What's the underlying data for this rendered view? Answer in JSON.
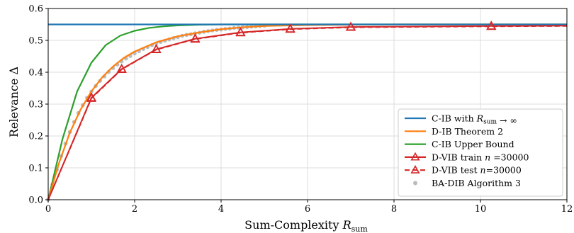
{
  "chart_data": {
    "type": "line",
    "xlabel_main": "Sum-Complexity ",
    "xlabel_symbol": "R",
    "xlabel_sub": "sum",
    "ylabel_main": "Relevance ",
    "ylabel_symbol": "Δ",
    "xlim": [
      0,
      12
    ],
    "ylim": [
      0,
      0.6
    ],
    "xticks": [
      "0",
      "2",
      "4",
      "6",
      "8",
      "10",
      "12"
    ],
    "yticks": [
      "0.0",
      "0.1",
      "0.2",
      "0.3",
      "0.4",
      "0.5",
      "0.6"
    ],
    "grid": true,
    "legend_position": "lower-right",
    "series": [
      {
        "name": "C-IB with R_sum → ∞",
        "legend_main": "C-IB with ",
        "legend_symbol": "R",
        "legend_sub": "sum",
        "legend_tail": " → ∞",
        "color": "#1f77b4",
        "style": "solid",
        "x": [
          0,
          12
        ],
        "y": [
          0.55,
          0.55
        ]
      },
      {
        "name": "D-IB Theorem 2",
        "legend_main": "D-IB Theorem 2",
        "color": "#ff7f0e",
        "style": "solid",
        "x": [
          0,
          0.25,
          0.5,
          0.75,
          1.0,
          1.25,
          1.5,
          1.75,
          2.0,
          2.5,
          3.0,
          3.5,
          4.0,
          4.5,
          5.0,
          6.0,
          7.0,
          8.0,
          10.0,
          12.0
        ],
        "y": [
          0,
          0.115,
          0.21,
          0.283,
          0.34,
          0.384,
          0.418,
          0.445,
          0.465,
          0.494,
          0.513,
          0.525,
          0.535,
          0.541,
          0.545,
          0.548,
          0.549,
          0.55,
          0.55,
          0.55
        ]
      },
      {
        "name": "C-IB Upper Bound",
        "legend_main": "C-IB Upper Bound",
        "color": "#2ca02c",
        "style": "solid",
        "x": [
          0,
          0.33,
          0.67,
          1.0,
          1.33,
          1.67,
          2.0,
          2.33,
          2.67,
          3.0,
          3.5,
          4.0,
          5.0,
          6.0,
          8.0,
          12.0
        ],
        "y": [
          0,
          0.19,
          0.34,
          0.43,
          0.485,
          0.515,
          0.53,
          0.539,
          0.544,
          0.547,
          0.549,
          0.55,
          0.55,
          0.55,
          0.55,
          0.55
        ]
      },
      {
        "name": "D-VIB train n =30000",
        "legend_main": "D-VIB train ",
        "legend_symbol": "n",
        "legend_tail": " =30000",
        "color": "#d62728",
        "style": "solid",
        "marker": "triangle",
        "x": [
          0,
          1.0,
          1.7,
          2.5,
          3.4,
          4.45,
          5.6,
          7.0,
          10.25,
          12.0
        ],
        "y": [
          0,
          0.32,
          0.41,
          0.472,
          0.505,
          0.525,
          0.536,
          0.542,
          0.545,
          0.546
        ]
      },
      {
        "name": "D-VIB test n=30000",
        "legend_main": "D-VIB test ",
        "legend_symbol": "n",
        "legend_tail": "=30000",
        "color": "#d62728",
        "style": "dashed",
        "marker": "triangle",
        "x": [
          0,
          1.0,
          1.7,
          2.5,
          3.4,
          4.45,
          5.6,
          7.0,
          10.25,
          12.0
        ],
        "y": [
          0,
          0.318,
          0.409,
          0.471,
          0.504,
          0.524,
          0.535,
          0.541,
          0.544,
          0.545
        ]
      },
      {
        "name": "BA-DIB Algorithm 3",
        "legend_main": "BA-DIB Algorithm 3",
        "color": "#bbbbbb",
        "style": "points",
        "marker": "dot",
        "x": [
          0,
          0.1,
          0.2,
          0.3,
          0.4,
          0.5,
          0.6,
          0.7,
          0.8,
          0.9,
          1.0,
          1.1,
          1.2,
          1.3,
          1.4,
          1.5,
          1.6,
          1.7,
          1.8,
          1.9,
          2.0,
          2.1,
          2.2,
          2.3,
          2.4,
          2.5,
          2.6,
          2.7,
          2.8,
          2.9,
          3.0,
          3.1,
          3.2,
          3.3,
          3.4,
          3.5,
          3.6,
          3.7,
          3.8,
          3.9,
          4.0,
          4.1,
          4.2,
          4.3,
          4.4,
          4.5,
          4.6,
          4.7,
          4.8,
          4.9,
          5.0
        ],
        "y": [
          0,
          0.048,
          0.094,
          0.137,
          0.176,
          0.212,
          0.244,
          0.272,
          0.297,
          0.32,
          0.339,
          0.357,
          0.373,
          0.387,
          0.401,
          0.413,
          0.424,
          0.434,
          0.443,
          0.451,
          0.459,
          0.466,
          0.473,
          0.479,
          0.485,
          0.49,
          0.495,
          0.499,
          0.503,
          0.507,
          0.51,
          0.514,
          0.517,
          0.519,
          0.522,
          0.524,
          0.527,
          0.529,
          0.531,
          0.533,
          0.534,
          0.536,
          0.537,
          0.539,
          0.54,
          0.541,
          0.542,
          0.543,
          0.544,
          0.545,
          0.546
        ]
      }
    ]
  }
}
